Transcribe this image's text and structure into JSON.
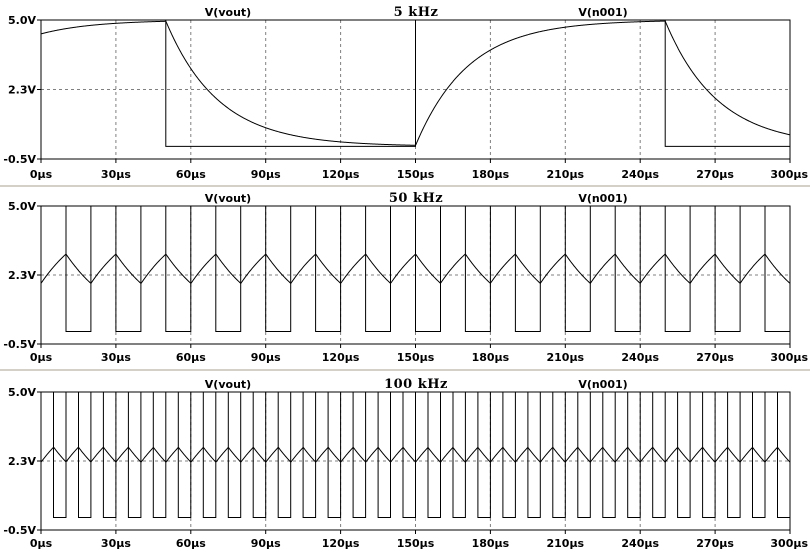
{
  "chart_data": [
    {
      "type": "line",
      "title": "5 kHz",
      "frequency_hz": 5000,
      "xlabel": "",
      "ylabel": "",
      "xlim": [
        0,
        300
      ],
      "ylim": [
        -0.5,
        5.0
      ],
      "x_ticks": [
        "0µs",
        "30µs",
        "60µs",
        "90µs",
        "120µs",
        "150µs",
        "180µs",
        "210µs",
        "240µs",
        "270µs",
        "300µs"
      ],
      "y_ticks": [
        "5.0V",
        "2.3V",
        "-0.5V"
      ],
      "grid": true,
      "series": [
        {
          "name": "V(vout)",
          "color": "#000000",
          "kind": "rc_response",
          "low": 0,
          "high": 5,
          "tau_us": 21
        },
        {
          "name": "V(n001)",
          "color": "#000000",
          "kind": "square",
          "low": 0,
          "high": 5,
          "period_us": 200,
          "edges_us": [
            50,
            150,
            250
          ]
        }
      ]
    },
    {
      "type": "line",
      "title": "50 kHz",
      "frequency_hz": 50000,
      "xlabel": "",
      "ylabel": "",
      "xlim": [
        0,
        300
      ],
      "ylim": [
        -0.5,
        5.0
      ],
      "x_ticks": [
        "0µs",
        "30µs",
        "60µs",
        "90µs",
        "120µs",
        "150µs",
        "180µs",
        "210µs",
        "240µs",
        "270µs",
        "300µs"
      ],
      "y_ticks": [
        "5.0V",
        "2.3V",
        "-0.5V"
      ],
      "grid": true,
      "series": [
        {
          "name": "V(vout)",
          "color": "#000000",
          "kind": "rc_response",
          "low": 0,
          "high": 5,
          "tau_us": 21
        },
        {
          "name": "V(n001)",
          "color": "#000000",
          "kind": "square",
          "low": 0,
          "high": 5,
          "period_us": 20
        }
      ]
    },
    {
      "type": "line",
      "title": "100 kHz",
      "frequency_hz": 100000,
      "xlabel": "",
      "ylabel": "",
      "xlim": [
        0,
        300
      ],
      "ylim": [
        -0.5,
        5.0
      ],
      "x_ticks": [
        "0µs",
        "30µs",
        "60µs",
        "90µs",
        "120µs",
        "150µs",
        "180µs",
        "210µs",
        "240µs",
        "270µs",
        "300µs"
      ],
      "y_ticks": [
        "5.0V",
        "2.3V",
        "-0.5V"
      ],
      "grid": true,
      "series": [
        {
          "name": "V(vout)",
          "color": "#000000",
          "kind": "rc_response",
          "low": 0,
          "high": 5,
          "tau_us": 21
        },
        {
          "name": "V(n001)",
          "color": "#000000",
          "kind": "square",
          "low": 0,
          "high": 5,
          "period_us": 10
        }
      ]
    }
  ]
}
